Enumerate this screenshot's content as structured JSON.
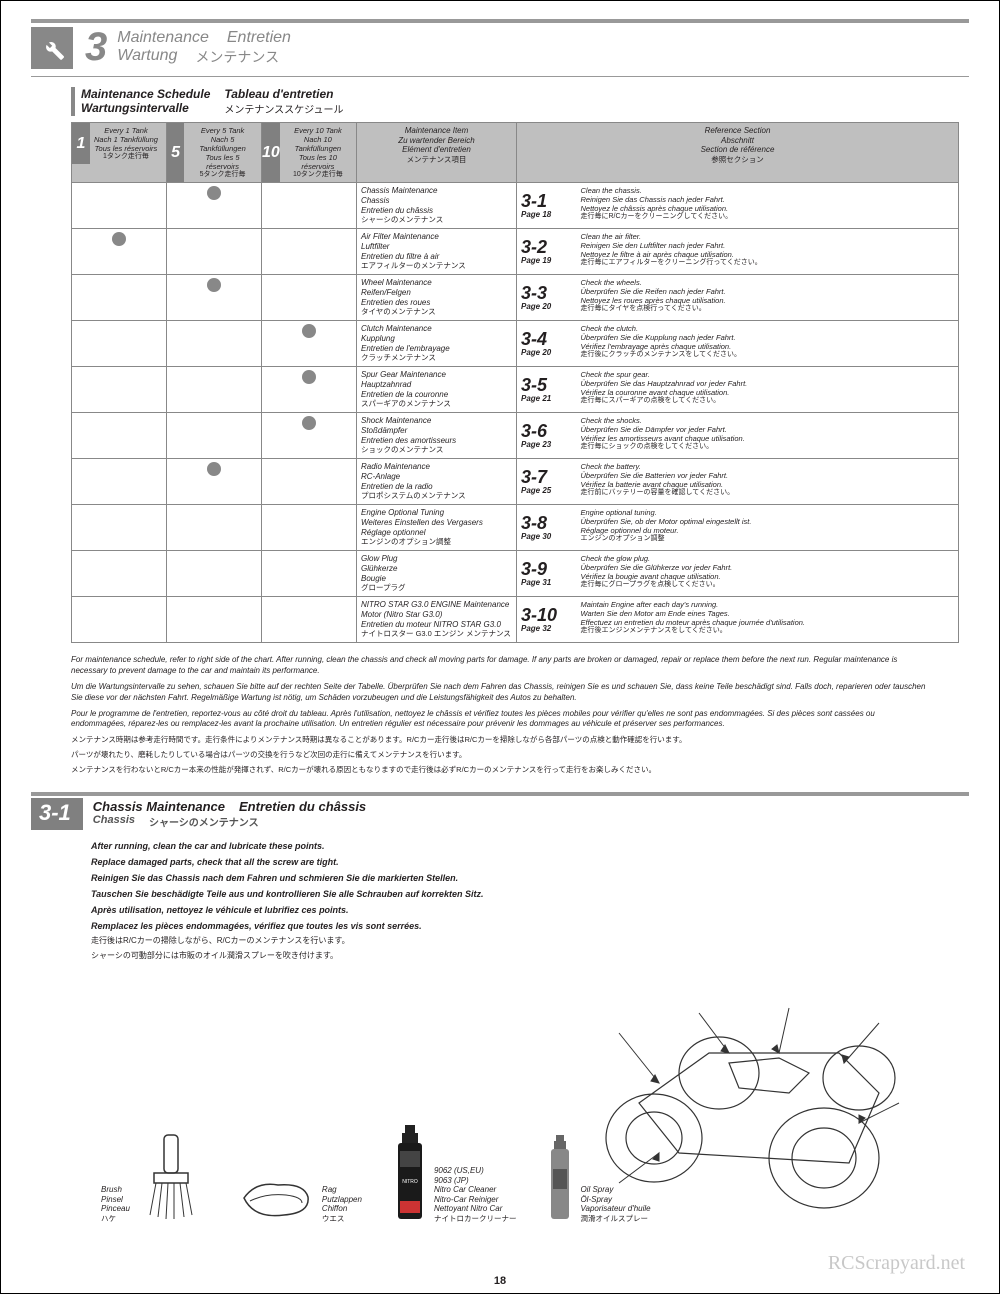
{
  "header": {
    "section_number": "3",
    "titles": {
      "en": "Maintenance",
      "de": "Wartung",
      "fr": "Entretien",
      "jp": "メンテナンス"
    }
  },
  "subheader": {
    "en": "Maintenance Schedule",
    "de": "Wartungsintervalle",
    "fr": "Tableau d'entretien",
    "jp": "メンテナンススケジュール"
  },
  "freq_headers": [
    {
      "num": "1",
      "l1": "Every 1 Tank",
      "l2": "Nach 1 Tankfüllung",
      "l3": "Tous les réservoirs",
      "l4": "1タンク走行毎"
    },
    {
      "num": "5",
      "l1": "Every 5 Tank",
      "l2": "Nach 5 Tankfüllungen",
      "l3": "Tous les 5 réservoirs",
      "l4": "5タンク走行毎"
    },
    {
      "num": "10",
      "l1": "Every 10 Tank",
      "l2": "Nach 10 Tankfüllungen",
      "l3": "Tous les 10 réservoirs",
      "l4": "10タンク走行毎"
    }
  ],
  "col_headers": {
    "item": {
      "l1": "Maintenance Item",
      "l2": "Zu wartender Bereich",
      "l3": "Elément d'entretien",
      "l4": "メンテナンス項目"
    },
    "ref": {
      "l1": "Reference Section",
      "l2": "Abschnitt",
      "l3": "Section de référence",
      "l4": "参照セクション"
    }
  },
  "rows": [
    {
      "dots": [
        false,
        true,
        false
      ],
      "item": {
        "l1": "Chassis Maintenance",
        "l2": "Chassis",
        "l3": "Entretien du châssis",
        "l4": "シャーシのメンテナンス"
      },
      "ref": "3-1",
      "page": "Page 18",
      "desc": {
        "l1": "Clean the chassis.",
        "l2": "Reinigen Sie das Chassis nach jeder Fahrt.",
        "l3": "Nettoyez le châssis après chaque utilisation.",
        "l4": "走行毎にR/Cカーをクリーニングしてください。"
      }
    },
    {
      "dots": [
        true,
        false,
        false
      ],
      "item": {
        "l1": "Air Filter Maintenance",
        "l2": "Luftfilter",
        "l3": "Entretien du filtre à air",
        "l4": "エアフィルターのメンテナンス"
      },
      "ref": "3-2",
      "page": "Page 19",
      "desc": {
        "l1": "Clean the air filter.",
        "l2": "Reinigen Sie den Luftfilter nach jeder Fahrt.",
        "l3": "Nettoyez le filtre à air après chaque utilisation.",
        "l4": "走行毎にエアフィルターをクリーニング行ってください。"
      }
    },
    {
      "dots": [
        false,
        true,
        false
      ],
      "item": {
        "l1": "Wheel Maintenance",
        "l2": "Reifen/Felgen",
        "l3": "Entretien des roues",
        "l4": "タイヤのメンテナンス"
      },
      "ref": "3-3",
      "page": "Page 20",
      "desc": {
        "l1": "Check the wheels.",
        "l2": "Überprüfen Sie die Reifen nach jeder Fahrt.",
        "l3": "Nettoyez les roues après chaque utilisation.",
        "l4": "走行毎にタイヤを点検行ってください。"
      }
    },
    {
      "dots": [
        false,
        false,
        true
      ],
      "item": {
        "l1": "Clutch Maintenance",
        "l2": "Kupplung",
        "l3": "Entretien de l'embrayage",
        "l4": "クラッチメンテナンス"
      },
      "ref": "3-4",
      "page": "Page 20",
      "desc": {
        "l1": "Check the clutch.",
        "l2": "Überprüfen Sie die Kupplung nach jeder Fahrt.",
        "l3": "Vérifiez l'embrayage après chaque utilisation.",
        "l4": "走行後にクラッチのメンテナンスをしてください。"
      }
    },
    {
      "dots": [
        false,
        false,
        true
      ],
      "item": {
        "l1": "Spur Gear Maintenance",
        "l2": "Hauptzahnrad",
        "l3": "Entretien de la couronne",
        "l4": "スパーギアのメンテナンス"
      },
      "ref": "3-5",
      "page": "Page 21",
      "desc": {
        "l1": "Check the spur gear.",
        "l2": "Überprüfen Sie das Hauptzahnrad vor jeder Fahrt.",
        "l3": "Vérifiez la couronne avant chaque utilisation.",
        "l4": "走行毎にスパーギアの点検をしてください。"
      }
    },
    {
      "dots": [
        false,
        false,
        true
      ],
      "item": {
        "l1": "Shock Maintenance",
        "l2": "Stoßdämpfer",
        "l3": "Entretien des amortisseurs",
        "l4": "ショックのメンテナンス"
      },
      "ref": "3-6",
      "page": "Page 23",
      "desc": {
        "l1": "Check the shocks.",
        "l2": "Überprüfen Sie die Dämpfer vor jeder Fahrt.",
        "l3": "Vérifiez les amortisseurs avant chaque utilisation.",
        "l4": "走行毎にショックの点検をしてください。"
      }
    },
    {
      "dots": [
        false,
        true,
        false
      ],
      "item": {
        "l1": "Radio Maintenance",
        "l2": "RC-Anlage",
        "l3": "Entretien de la radio",
        "l4": "プロポシステムのメンテナンス"
      },
      "ref": "3-7",
      "page": "Page 25",
      "desc": {
        "l1": "Check the battery.",
        "l2": "Überprüfen Sie die Batterien vor jeder Fahrt.",
        "l3": "Vérifiez la batterie avant chaque utilisation.",
        "l4": "走行前にバッテリーの容量を確認してください。"
      }
    },
    {
      "dots": [
        false,
        false,
        false
      ],
      "item": {
        "l1": "Engine Optional Tuning",
        "l2": "Weiteres Einstellen des Vergasers",
        "l3": "Réglage optionnel",
        "l4": "エンジンのオプション調整"
      },
      "ref": "3-8",
      "page": "Page 30",
      "desc": {
        "l1": "Engine optional tuning.",
        "l2": "Überprüfen Sie, ob der Motor optimal eingestellt ist.",
        "l3": "Réglage optionnel du moteur.",
        "l4": "エンジンのオプション調整"
      }
    },
    {
      "dots": [
        false,
        false,
        false
      ],
      "item": {
        "l1": "Glow Plug",
        "l2": "Glühkerze",
        "l3": "Bougie",
        "l4": "グロープラグ"
      },
      "ref": "3-9",
      "page": "Page 31",
      "desc": {
        "l1": "Check the glow plug.",
        "l2": "Überprüfen Sie die Glühkerze vor jeder Fahrt.",
        "l3": "Vérifiez la bougie avant chaque utilisation.",
        "l4": "走行毎にグロープラグを点検してください。"
      }
    },
    {
      "dots": [
        false,
        false,
        false
      ],
      "item": {
        "l1": "NITRO STAR G3.0 ENGINE Maintenance",
        "l2": "Motor (Nitro Star G3.0)",
        "l3": "Entretien du moteur NITRO STAR G3.0",
        "l4": "ナイトロスター G3.0 エンジン メンテナンス"
      },
      "ref": "3-10",
      "page": "Page 32",
      "desc": {
        "l1": "Maintain Engine after each day's running.",
        "l2": "Warten Sie den Motor am Ende eines Tages.",
        "l3": "Effectuez un entretien du moteur après chaque journée d'utilisation.",
        "l4": "走行後エンジンメンテナンスをしてください。"
      }
    }
  ],
  "notes": {
    "en": "For maintenance schedule, refer to right side of the chart. After running, clean the chassis and check all moving parts for damage. If any parts are broken or damaged, repair or replace them before the next run. Regular maintenance is necessary to prevent damage to the car and maintain its performance.",
    "de": "Um die Wartungsintervalle zu sehen, schauen Sie bitte auf der rechten Seite der Tabelle. Überprüfen Sie nach dem Fahren das Chassis, reinigen Sie es und schauen Sie, dass keine Teile beschädigt sind. Falls doch, reparieren oder tauschen Sie diese vor der nächsten Fahrt. Regelmäßige Wartung ist nötig, um Schäden vorzubeugen und die Leistungsfähigkeit des Autos zu behalten.",
    "fr": "Pour le programme de l'entretien, reportez-vous au côté droit du tableau. Après l'utilisation, nettoyez le châssis et vérifiez toutes les pièces mobiles pour vérifier qu'elles ne sont pas endommagées. Si des pièces sont cassées ou endommagées, réparez-les ou remplacez-les avant la prochaine utilisation. Un entretien régulier est nécessaire pour prévenir les dommages au véhicule et préserver ses performances.",
    "jp1": "メンテナンス時期は参考走行時間です。走行条件によりメンテナンス時期は異なることがあります。R/Cカー走行後はR/Cカーを掃除しながら各部パーツの点検と動作確認を行います。",
    "jp2": "パーツが壊れたり、磨耗したりしている場合はパーツの交換を行うなど次回の走行に備えてメンテナンスを行います。",
    "jp3": "メンテナンスを行わないとR/Cカー本来の性能が発揮されず、R/Cカーが壊れる原因ともなりますので走行後は必ずR/Cカーのメンテナンスを行って走行をお楽しみください。"
  },
  "sec31": {
    "num": "3-1",
    "titles": {
      "en": "Chassis Maintenance",
      "de": "Chassis",
      "fr": "Entretien du châssis",
      "jp": "シャーシのメンテナンス"
    },
    "body": {
      "en1": "After running, clean the car and lubricate these points.",
      "en2": "Replace damaged parts, check that all the screw are tight.",
      "de1": "Reinigen Sie das Chassis nach dem Fahren und schmieren Sie die markierten Stellen.",
      "de2": "Tauschen Sie beschädigte Teile aus und kontrollieren Sie alle Schrauben auf korrekten Sitz.",
      "fr1": "Après utilisation, nettoyez le véhicule et lubrifiez ces points.",
      "fr2": "Remplacez les pièces endommagées, vérifiez que toutes les vis sont serrées.",
      "jp1": "走行後はR/Cカーの掃除しながら、R/Cカーのメンテナンスを行います。",
      "jp2": "シャーシの可動部分には市販のオイル潤滑スプレーを吹き付けます。"
    }
  },
  "tools": {
    "brush": {
      "l1": "Brush",
      "l2": "Pinsel",
      "l3": "Pinceau",
      "l4": "ハケ"
    },
    "rag": {
      "l1": "Rag",
      "l2": "Putzlappen",
      "l3": "Chiffon",
      "l4": "ウエス"
    },
    "cleaner": {
      "l1": "9062 (US,EU)",
      "l2": "9063 (JP)",
      "l3": "Nitro Car Cleaner",
      "l4": "Nitro-Car Reiniger",
      "l5": "Nettoyant Nitro Car",
      "l6": "ナイトロカークリーナー"
    },
    "oil": {
      "l1": "Oil Spray",
      "l2": "Öl-Spray",
      "l3": "Vaporisateur d'huile",
      "l4": "潤滑オイルスプレー"
    }
  },
  "watermark": "RCScrapyard.net",
  "page_number": "18"
}
